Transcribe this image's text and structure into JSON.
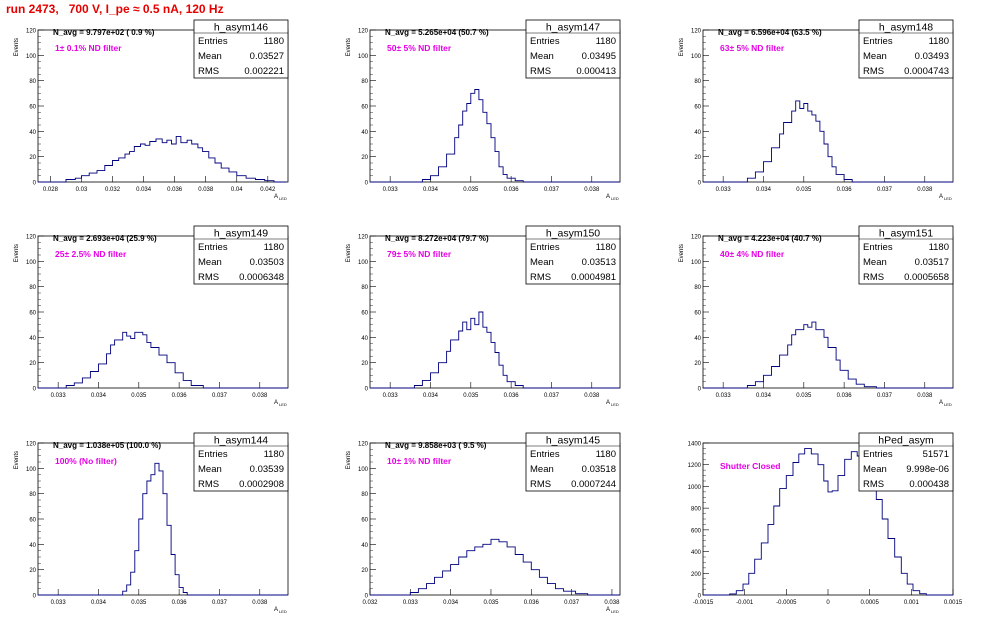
{
  "page": {
    "title": "run 2473,   700 V, I_pe ≈ 0.5 nA, 120 Hz"
  },
  "chart_data": [
    {
      "type": "bar",
      "stats": {
        "name": "h_asym146",
        "entries": "1180",
        "mean": "0.03527",
        "rms": "0.002221"
      },
      "navg": "N_avg = 9.797e+02 ( 0.9 %)",
      "filter": "1± 0.1% ND filter",
      "ylabel": "Events",
      "xlabel": "A",
      "xlabel_sub": "LED",
      "xlim": [
        0.0272,
        0.0433
      ],
      "ylim": [
        0,
        120
      ],
      "xticks": [
        "0.028",
        "0.03",
        "0.032",
        "0.034",
        "0.036",
        "0.038",
        "0.04",
        "0.042"
      ],
      "yticks": [
        "0",
        "20",
        "40",
        "60",
        "80",
        "100",
        "120"
      ],
      "x": [
        0.0272,
        0.0432
      ],
      "y": [
        [
          0.0272,
          0
        ],
        [
          0.0286,
          0
        ],
        [
          0.029,
          2
        ],
        [
          0.0296,
          3
        ],
        [
          0.03,
          5
        ],
        [
          0.0305,
          7
        ],
        [
          0.031,
          9
        ],
        [
          0.0315,
          13
        ],
        [
          0.032,
          17
        ],
        [
          0.0324,
          19
        ],
        [
          0.0328,
          22
        ],
        [
          0.0331,
          24
        ],
        [
          0.0334,
          28
        ],
        [
          0.0338,
          30
        ],
        [
          0.0341,
          29
        ],
        [
          0.0344,
          32
        ],
        [
          0.0348,
          34
        ],
        [
          0.0352,
          31
        ],
        [
          0.0355,
          33
        ],
        [
          0.0358,
          30
        ],
        [
          0.0361,
          36
        ],
        [
          0.0364,
          31
        ],
        [
          0.0368,
          33
        ],
        [
          0.0371,
          30
        ],
        [
          0.0375,
          27
        ],
        [
          0.0378,
          24
        ],
        [
          0.0382,
          19
        ],
        [
          0.0386,
          15
        ],
        [
          0.039,
          11
        ],
        [
          0.0395,
          8
        ],
        [
          0.04,
          5
        ],
        [
          0.0406,
          3
        ],
        [
          0.0412,
          2
        ],
        [
          0.0418,
          1
        ],
        [
          0.0424,
          0
        ],
        [
          0.0432,
          0
        ]
      ]
    },
    {
      "type": "bar",
      "stats": {
        "name": "h_asym147",
        "entries": "1180",
        "mean": "0.03495",
        "rms": "0.000413"
      },
      "navg": "N_avg = 5.265e+04 (50.7 %)",
      "filter": "50± 5% ND filter",
      "ylabel": "Events",
      "xlabel": "A",
      "xlabel_sub": "LED",
      "xlim": [
        0.0325,
        0.0387
      ],
      "ylim": [
        0,
        120
      ],
      "xticks": [
        "0.033",
        "0.034",
        "0.035",
        "0.036",
        "0.037",
        "0.038"
      ],
      "yticks": [
        "0",
        "20",
        "40",
        "60",
        "80",
        "100",
        "120"
      ],
      "x": [
        0.0325,
        0.0387
      ],
      "y": [
        [
          0.0325,
          0
        ],
        [
          0.0336,
          0
        ],
        [
          0.0338,
          2
        ],
        [
          0.034,
          5
        ],
        [
          0.0342,
          12
        ],
        [
          0.0344,
          22
        ],
        [
          0.0346,
          35
        ],
        [
          0.0347,
          45
        ],
        [
          0.0348,
          56
        ],
        [
          0.0349,
          62
        ],
        [
          0.035,
          70
        ],
        [
          0.0351,
          73
        ],
        [
          0.0352,
          65
        ],
        [
          0.0353,
          55
        ],
        [
          0.0354,
          46
        ],
        [
          0.0355,
          35
        ],
        [
          0.0356,
          24
        ],
        [
          0.0357,
          12
        ],
        [
          0.0358,
          6
        ],
        [
          0.0359,
          3
        ],
        [
          0.0361,
          1
        ],
        [
          0.0363,
          0
        ],
        [
          0.0387,
          0
        ]
      ]
    },
    {
      "type": "bar",
      "stats": {
        "name": "h_asym148",
        "entries": "1180",
        "mean": "0.03493",
        "rms": "0.0004743"
      },
      "navg": "N_avg = 6.596e+04 (63.5 %)",
      "filter": "63± 5% ND filter",
      "ylabel": "Events",
      "xlabel": "A",
      "xlabel_sub": "LED",
      "xlim": [
        0.0325,
        0.0387
      ],
      "ylim": [
        0,
        120
      ],
      "xticks": [
        "0.033",
        "0.034",
        "0.035",
        "0.036",
        "0.037",
        "0.038"
      ],
      "yticks": [
        "0",
        "20",
        "40",
        "60",
        "80",
        "100",
        "120"
      ],
      "x": [
        0.0325,
        0.0387
      ],
      "y": [
        [
          0.0325,
          0
        ],
        [
          0.0334,
          0
        ],
        [
          0.0336,
          3
        ],
        [
          0.0338,
          8
        ],
        [
          0.034,
          16
        ],
        [
          0.0342,
          27
        ],
        [
          0.0344,
          38
        ],
        [
          0.0345,
          47
        ],
        [
          0.0347,
          56
        ],
        [
          0.0348,
          64
        ],
        [
          0.0349,
          58
        ],
        [
          0.035,
          62
        ],
        [
          0.0351,
          56
        ],
        [
          0.0352,
          53
        ],
        [
          0.0353,
          48
        ],
        [
          0.0354,
          40
        ],
        [
          0.0355,
          30
        ],
        [
          0.0356,
          20
        ],
        [
          0.0357,
          12
        ],
        [
          0.0358,
          6
        ],
        [
          0.036,
          2
        ],
        [
          0.0362,
          0
        ],
        [
          0.0387,
          0
        ]
      ]
    },
    {
      "type": "bar",
      "stats": {
        "name": "h_asym149",
        "entries": "1180",
        "mean": "0.03503",
        "rms": "0.0006348"
      },
      "navg": "N_avg = 2.693e+04 (25.9 %)",
      "filter": "25± 2.5% ND filter",
      "ylabel": "Events",
      "xlabel": "A",
      "xlabel_sub": "LED",
      "xlim": [
        0.0325,
        0.0387
      ],
      "ylim": [
        0,
        120
      ],
      "xticks": [
        "0.033",
        "0.034",
        "0.035",
        "0.036",
        "0.037",
        "0.038"
      ],
      "yticks": [
        "0",
        "20",
        "40",
        "60",
        "80",
        "100",
        "120"
      ],
      "x": [
        0.0325,
        0.0387
      ],
      "y": [
        [
          0.0325,
          0
        ],
        [
          0.033,
          0
        ],
        [
          0.0332,
          2
        ],
        [
          0.0334,
          4
        ],
        [
          0.0336,
          8
        ],
        [
          0.0338,
          13
        ],
        [
          0.034,
          19
        ],
        [
          0.0342,
          27
        ],
        [
          0.0343,
          34
        ],
        [
          0.0344,
          38
        ],
        [
          0.0346,
          44
        ],
        [
          0.0347,
          41
        ],
        [
          0.0348,
          39
        ],
        [
          0.0349,
          44
        ],
        [
          0.0351,
          42
        ],
        [
          0.0352,
          36
        ],
        [
          0.0353,
          32
        ],
        [
          0.0355,
          26
        ],
        [
          0.0357,
          20
        ],
        [
          0.0359,
          12
        ],
        [
          0.0361,
          6
        ],
        [
          0.0363,
          2
        ],
        [
          0.0366,
          0
        ],
        [
          0.0387,
          0
        ]
      ]
    },
    {
      "type": "bar",
      "stats": {
        "name": "h_asym150",
        "entries": "1180",
        "mean": "0.03513",
        "rms": "0.0004981"
      },
      "navg": "N_avg = 8.272e+04 (79.7 %)",
      "filter": "79± 5% ND filter",
      "ylabel": "Events",
      "xlabel": "A",
      "xlabel_sub": "LED",
      "xlim": [
        0.0325,
        0.0387
      ],
      "ylim": [
        0,
        120
      ],
      "xticks": [
        "0.033",
        "0.034",
        "0.035",
        "0.036",
        "0.037",
        "0.038"
      ],
      "yticks": [
        "0",
        "20",
        "40",
        "60",
        "80",
        "100",
        "120"
      ],
      "x": [
        0.0325,
        0.0387
      ],
      "y": [
        [
          0.0325,
          0
        ],
        [
          0.0334,
          0
        ],
        [
          0.0336,
          2
        ],
        [
          0.0338,
          6
        ],
        [
          0.034,
          12
        ],
        [
          0.0342,
          20
        ],
        [
          0.0344,
          29
        ],
        [
          0.0345,
          38
        ],
        [
          0.0347,
          45
        ],
        [
          0.0348,
          52
        ],
        [
          0.0349,
          46
        ],
        [
          0.035,
          55
        ],
        [
          0.0351,
          50
        ],
        [
          0.0352,
          60
        ],
        [
          0.0353,
          48
        ],
        [
          0.0354,
          44
        ],
        [
          0.0355,
          36
        ],
        [
          0.0356,
          28
        ],
        [
          0.0357,
          18
        ],
        [
          0.0358,
          10
        ],
        [
          0.0359,
          5
        ],
        [
          0.0361,
          2
        ],
        [
          0.0363,
          0
        ],
        [
          0.0387,
          0
        ]
      ]
    },
    {
      "type": "bar",
      "stats": {
        "name": "h_asym151",
        "entries": "1180",
        "mean": "0.03517",
        "rms": "0.0005658"
      },
      "navg": "N_avg = 4.223e+04 (40.7 %)",
      "filter": "40± 4% ND filter",
      "ylabel": "Events",
      "xlabel": "A",
      "xlabel_sub": "LED",
      "xlim": [
        0.0325,
        0.0387
      ],
      "ylim": [
        0,
        120
      ],
      "xticks": [
        "0.033",
        "0.034",
        "0.035",
        "0.036",
        "0.037",
        "0.038"
      ],
      "yticks": [
        "0",
        "20",
        "40",
        "60",
        "80",
        "100",
        "120"
      ],
      "x": [
        0.0325,
        0.0387
      ],
      "y": [
        [
          0.0325,
          0
        ],
        [
          0.0334,
          0
        ],
        [
          0.0336,
          2
        ],
        [
          0.0338,
          5
        ],
        [
          0.034,
          10
        ],
        [
          0.0342,
          17
        ],
        [
          0.0344,
          26
        ],
        [
          0.0346,
          34
        ],
        [
          0.0347,
          42
        ],
        [
          0.0348,
          46
        ],
        [
          0.035,
          50
        ],
        [
          0.0351,
          48
        ],
        [
          0.0352,
          52
        ],
        [
          0.0353,
          46
        ],
        [
          0.0355,
          40
        ],
        [
          0.0356,
          32
        ],
        [
          0.0358,
          22
        ],
        [
          0.0359,
          14
        ],
        [
          0.0361,
          7
        ],
        [
          0.0363,
          3
        ],
        [
          0.0365,
          1
        ],
        [
          0.0368,
          0
        ],
        [
          0.0387,
          0
        ]
      ]
    },
    {
      "type": "bar",
      "stats": {
        "name": "h_asym144",
        "entries": "1180",
        "mean": "0.03539",
        "rms": "0.0002908"
      },
      "navg": "N_avg = 1.038e+05 (100.0 %)",
      "filter": "100% (No filter)",
      "ylabel": "Events",
      "xlabel": "A",
      "xlabel_sub": "LED",
      "xlim": [
        0.0325,
        0.0387
      ],
      "ylim": [
        0,
        120
      ],
      "xticks": [
        "0.033",
        "0.034",
        "0.035",
        "0.036",
        "0.037",
        "0.038"
      ],
      "yticks": [
        "0",
        "20",
        "40",
        "60",
        "80",
        "100",
        "120"
      ],
      "x": [
        0.0325,
        0.0387
      ],
      "y": [
        [
          0.0325,
          0
        ],
        [
          0.0345,
          0
        ],
        [
          0.0346,
          3
        ],
        [
          0.0347,
          8
        ],
        [
          0.0348,
          18
        ],
        [
          0.0349,
          35
        ],
        [
          0.035,
          60
        ],
        [
          0.0351,
          80
        ],
        [
          0.0352,
          90
        ],
        [
          0.0353,
          95
        ],
        [
          0.0354,
          104
        ],
        [
          0.0355,
          98
        ],
        [
          0.0356,
          80
        ],
        [
          0.0357,
          55
        ],
        [
          0.0358,
          32
        ],
        [
          0.0359,
          16
        ],
        [
          0.036,
          6
        ],
        [
          0.0361,
          2
        ],
        [
          0.0362,
          0
        ],
        [
          0.0387,
          0
        ]
      ]
    },
    {
      "type": "bar",
      "stats": {
        "name": "h_asym145",
        "entries": "1180",
        "mean": "0.03518",
        "rms": "0.0007244"
      },
      "navg": "N_avg = 9.858e+03 ( 9.5 %)",
      "filter": "10± 1% ND filter",
      "ylabel": "Events",
      "xlabel": "A",
      "xlabel_sub": "LED",
      "xlim": [
        0.032,
        0.0382
      ],
      "ylim": [
        0,
        120
      ],
      "xticks": [
        "0.032",
        "0.033",
        "0.034",
        "0.035",
        "0.036",
        "0.037",
        "0.038"
      ],
      "yticks": [
        "0",
        "20",
        "40",
        "60",
        "80",
        "100",
        "120"
      ],
      "x": [
        0.032,
        0.0382
      ],
      "y": [
        [
          0.032,
          0
        ],
        [
          0.0328,
          0
        ],
        [
          0.033,
          2
        ],
        [
          0.0332,
          5
        ],
        [
          0.0334,
          9
        ],
        [
          0.0336,
          14
        ],
        [
          0.0338,
          19
        ],
        [
          0.034,
          24
        ],
        [
          0.0342,
          30
        ],
        [
          0.0344,
          35
        ],
        [
          0.0346,
          38
        ],
        [
          0.0348,
          40
        ],
        [
          0.035,
          44
        ],
        [
          0.0352,
          42
        ],
        [
          0.0354,
          38
        ],
        [
          0.0356,
          32
        ],
        [
          0.0358,
          26
        ],
        [
          0.036,
          20
        ],
        [
          0.0362,
          14
        ],
        [
          0.0364,
          9
        ],
        [
          0.0366,
          5
        ],
        [
          0.0368,
          3
        ],
        [
          0.0371,
          1
        ],
        [
          0.0374,
          0
        ],
        [
          0.0382,
          0
        ]
      ]
    },
    {
      "type": "bar",
      "stats": {
        "name": "hPed_asym",
        "entries": "51571",
        "mean": "9.998e-06",
        "rms": "0.000438"
      },
      "navg": "",
      "filter": "Shutter Closed",
      "ylabel": "",
      "xlabel": "",
      "xlabel_sub": "",
      "xlim": [
        -0.0015,
        0.0015
      ],
      "ylim": [
        0,
        1400
      ],
      "xticks": [
        "-0.0015",
        "-0.001",
        "-0.0005",
        "0",
        "0.0005",
        "0.001",
        "0.0015"
      ],
      "yticks": [
        "0",
        "200",
        "400",
        "600",
        "800",
        "1000",
        "1200",
        "1400"
      ],
      "x": [
        -0.0015,
        0.0015
      ],
      "y": [
        [
          -0.0015,
          0
        ],
        [
          -0.00125,
          0
        ],
        [
          -0.00118,
          10
        ],
        [
          -0.0011,
          40
        ],
        [
          -0.00102,
          100
        ],
        [
          -0.00095,
          200
        ],
        [
          -0.00088,
          330
        ],
        [
          -0.0008,
          480
        ],
        [
          -0.00072,
          650
        ],
        [
          -0.00065,
          820
        ],
        [
          -0.00058,
          980
        ],
        [
          -0.0005,
          1100
        ],
        [
          -0.00042,
          1220
        ],
        [
          -0.00035,
          1300
        ],
        [
          -0.00028,
          1350
        ],
        [
          -0.0002,
          1300
        ],
        [
          -0.00012,
          1200
        ],
        [
          -5e-05,
          1050
        ],
        [
          0.0,
          950
        ],
        [
          5e-05,
          960
        ],
        [
          0.00012,
          1100
        ],
        [
          0.0002,
          1250
        ],
        [
          0.00028,
          1320
        ],
        [
          0.00035,
          1280
        ],
        [
          0.00042,
          1200
        ],
        [
          0.0005,
          1050
        ],
        [
          0.00058,
          880
        ],
        [
          0.00065,
          700
        ],
        [
          0.00072,
          520
        ],
        [
          0.0008,
          350
        ],
        [
          0.00088,
          200
        ],
        [
          0.00095,
          100
        ],
        [
          0.00102,
          40
        ],
        [
          0.0011,
          12
        ],
        [
          0.00118,
          0
        ],
        [
          0.0015,
          0
        ]
      ]
    }
  ]
}
